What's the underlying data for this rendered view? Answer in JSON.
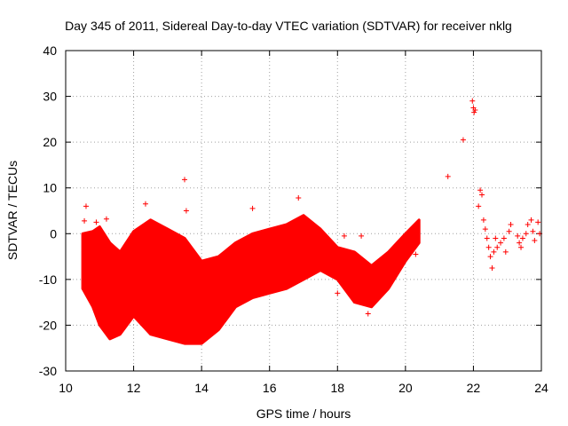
{
  "chart_data": {
    "type": "scatter",
    "title": "Day 345 of 2011, Sidereal Day-to-day VTEC variation (SDTVAR) for receiver nklg",
    "xlabel": "GPS time / hours",
    "ylabel": "SDTVAR / TECUs",
    "xlim": [
      10,
      24
    ],
    "ylim": [
      -30,
      40
    ],
    "xticks": [
      10,
      12,
      14,
      16,
      18,
      20,
      22,
      24
    ],
    "yticks": [
      -30,
      -20,
      -10,
      0,
      10,
      20,
      30,
      40
    ],
    "grid": true,
    "marker": "+",
    "color": "#ff0000",
    "series": [
      {
        "name": "SDTVAR",
        "band": {
          "x": [
            10.5,
            10.8,
            11.0,
            11.3,
            11.6,
            12.0,
            12.5,
            13.0,
            13.5,
            14.0,
            14.5,
            15.0,
            15.5,
            16.0,
            16.5,
            17.0,
            17.5,
            18.0,
            18.5,
            19.0,
            19.5,
            20.0,
            20.4
          ],
          "upper": [
            0.0,
            0.5,
            1.5,
            -2.0,
            -4.0,
            0.5,
            3.0,
            1.0,
            -1.0,
            -6.0,
            -5.0,
            -2.0,
            0.0,
            1.0,
            2.0,
            4.0,
            1.0,
            -3.0,
            -4.0,
            -7.0,
            -4.0,
            0.0,
            3.0
          ],
          "lower": [
            -12.0,
            -16.0,
            -20.0,
            -23.0,
            -22.0,
            -18.0,
            -22.0,
            -23.0,
            -24.0,
            -24.0,
            -21.0,
            -16.0,
            -14.0,
            -13.0,
            -12.0,
            -10.0,
            -8.0,
            -10.0,
            -15.0,
            -16.0,
            -12.0,
            -6.0,
            -2.0
          ]
        },
        "points": [
          {
            "x": 10.6,
            "y": 6.0
          },
          {
            "x": 10.55,
            "y": 2.8
          },
          {
            "x": 10.9,
            "y": 2.5
          },
          {
            "x": 11.2,
            "y": 3.2
          },
          {
            "x": 12.35,
            "y": 6.5
          },
          {
            "x": 13.5,
            "y": 11.8
          },
          {
            "x": 13.55,
            "y": 5.0
          },
          {
            "x": 15.5,
            "y": 5.5
          },
          {
            "x": 16.85,
            "y": 7.8
          },
          {
            "x": 20.3,
            "y": -4.5
          },
          {
            "x": 21.25,
            "y": 12.5
          },
          {
            "x": 21.7,
            "y": 20.5
          },
          {
            "x": 21.97,
            "y": 29.0
          },
          {
            "x": 22.0,
            "y": 27.5
          },
          {
            "x": 22.02,
            "y": 26.5
          },
          {
            "x": 22.05,
            "y": 27.0
          },
          {
            "x": 22.2,
            "y": 9.5
          },
          {
            "x": 22.25,
            "y": 8.5
          },
          {
            "x": 22.15,
            "y": 6.0
          },
          {
            "x": 22.3,
            "y": 3.0
          },
          {
            "x": 22.35,
            "y": 1.0
          },
          {
            "x": 22.4,
            "y": -1.0
          },
          {
            "x": 22.45,
            "y": -3.0
          },
          {
            "x": 22.5,
            "y": -5.0
          },
          {
            "x": 22.55,
            "y": -7.5
          },
          {
            "x": 22.6,
            "y": -4.0
          },
          {
            "x": 22.65,
            "y": -1.0
          },
          {
            "x": 22.7,
            "y": -3.0
          },
          {
            "x": 22.8,
            "y": -2.0
          },
          {
            "x": 22.9,
            "y": -1.0
          },
          {
            "x": 22.95,
            "y": -4.0
          },
          {
            "x": 23.05,
            "y": 0.5
          },
          {
            "x": 23.1,
            "y": 2.0
          },
          {
            "x": 23.3,
            "y": -0.5
          },
          {
            "x": 23.35,
            "y": -2.0
          },
          {
            "x": 23.4,
            "y": -3.0
          },
          {
            "x": 23.45,
            "y": -1.0
          },
          {
            "x": 23.55,
            "y": 0.0
          },
          {
            "x": 23.6,
            "y": 2.0
          },
          {
            "x": 23.7,
            "y": 3.0
          },
          {
            "x": 23.75,
            "y": 0.5
          },
          {
            "x": 23.8,
            "y": -1.5
          },
          {
            "x": 23.9,
            "y": 2.5
          },
          {
            "x": 23.95,
            "y": 0.0
          },
          {
            "x": 19.2,
            "y": -10.0
          },
          {
            "x": 18.0,
            "y": -13.0
          },
          {
            "x": 18.9,
            "y": -17.5
          },
          {
            "x": 18.2,
            "y": -0.5
          },
          {
            "x": 18.7,
            "y": -0.5
          }
        ]
      }
    ]
  }
}
